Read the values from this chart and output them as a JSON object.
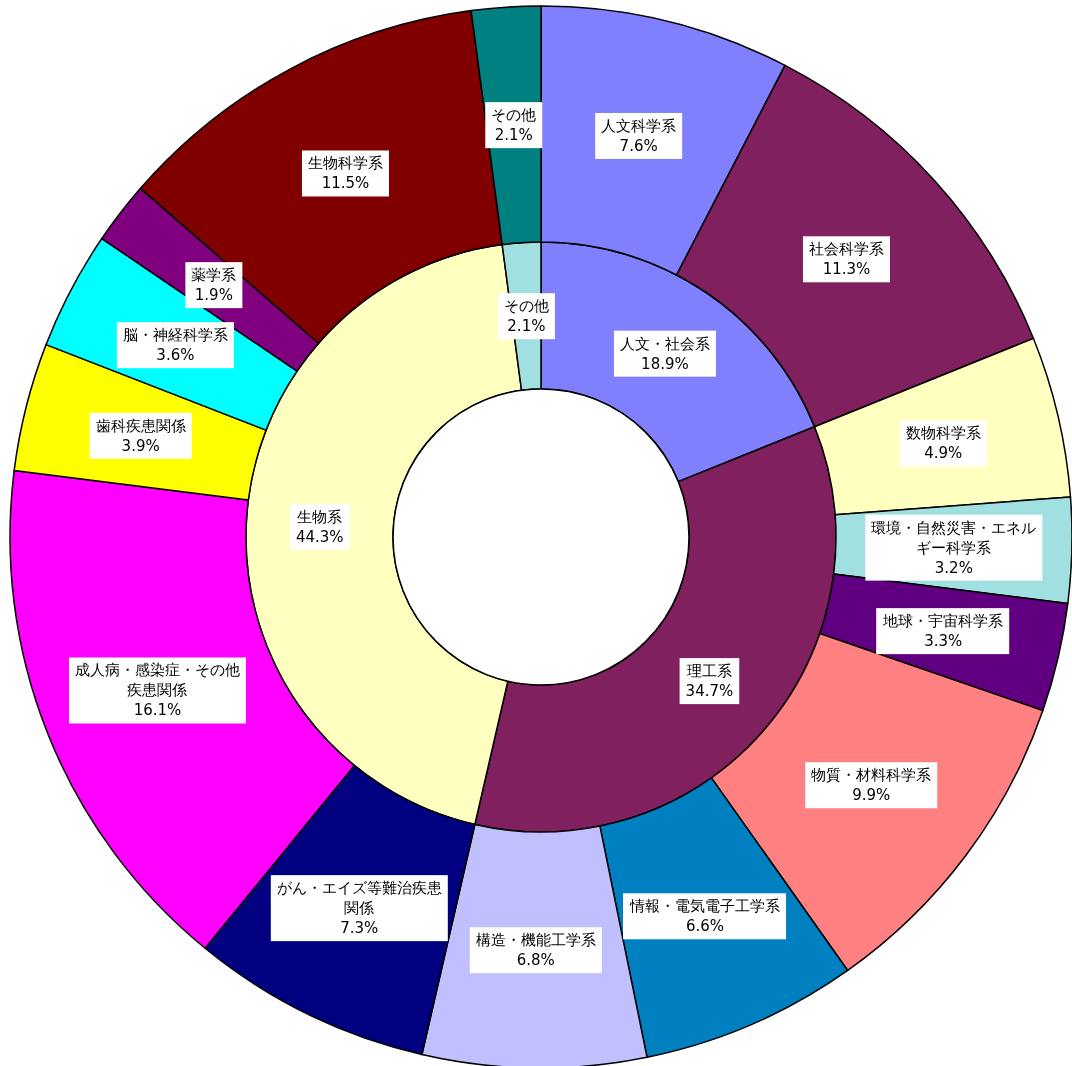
{
  "chart_data": [
    {
      "type": "donut",
      "categories": [
        "人文・社会系",
        "理工系",
        "生物系",
        "その他"
      ],
      "values": [
        18.9,
        34.7,
        44.3,
        2.1
      ],
      "value_labels": [
        "18.9%",
        "34.7%",
        "44.3%",
        "2.1%"
      ],
      "colors": [
        "#8080ff",
        "#80205f",
        "#ffffc0",
        "#a0e0e0"
      ],
      "legend": false
    },
    {
      "type": "donut",
      "categories": [
        "人文科学系",
        "社会科学系",
        "数物科学系",
        "環境・自然災害・エネルギー科学系",
        "地球・宇宙科学系",
        "物質・材料科学系",
        "情報・電気電子工学系",
        "構造・機能工学系",
        "がん・エイズ等難治疾患関係",
        "成人病・感染症・その他疾患関係",
        "歯科疾患関係",
        "脳・神経科学系",
        "薬学系",
        "生物科学系",
        "その他"
      ],
      "values": [
        7.6,
        11.3,
        4.9,
        3.2,
        3.3,
        9.9,
        6.6,
        6.8,
        7.3,
        16.1,
        3.9,
        3.6,
        1.9,
        11.5,
        2.1
      ],
      "value_labels": [
        "7.6%",
        "11.3%",
        "4.9%",
        "3.2%",
        "3.3%",
        "9.9%",
        "6.6%",
        "6.8%",
        "7.3%",
        "16.1%",
        "3.9%",
        "3.6%",
        "1.9%",
        "11.5%",
        "2.1%"
      ],
      "colors": [
        "#8080ff",
        "#80205f",
        "#ffffc0",
        "#a0e0e0",
        "#600080",
        "#ff8080",
        "#0080c0",
        "#c0c0ff",
        "#000080",
        "#ff00ff",
        "#ffff00",
        "#00ffff",
        "#800080",
        "#800000",
        "#008080"
      ],
      "legend": false
    }
  ]
}
